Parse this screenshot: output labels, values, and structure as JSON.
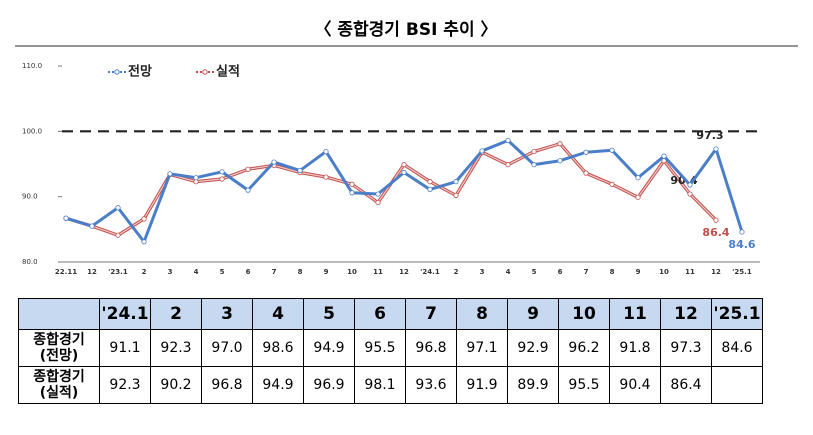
{
  "chart_data": {
    "type": "line",
    "title": "〈 종합경기 BSI 추이 〉",
    "categories": [
      "22.11",
      "12",
      "'23.1",
      "2",
      "3",
      "4",
      "5",
      "6",
      "7",
      "8",
      "9",
      "10",
      "11",
      "12",
      "'24.1",
      "2",
      "3",
      "4",
      "5",
      "6",
      "7",
      "8",
      "9",
      "10",
      "11",
      "12",
      "'25.1"
    ],
    "series": [
      {
        "name": "전망",
        "color": "#4a7ec8",
        "values": [
          86.7,
          85.5,
          88.3,
          83.1,
          93.5,
          92.9,
          93.8,
          91.0,
          95.3,
          94.0,
          96.9,
          90.6,
          90.4,
          93.7,
          91.1,
          92.3,
          97.0,
          98.6,
          94.9,
          95.5,
          96.8,
          97.1,
          92.9,
          96.2,
          91.8,
          97.3,
          84.6
        ],
        "value_labels": [
          null,
          null,
          null,
          null,
          null,
          null,
          null,
          null,
          null,
          null,
          null,
          null,
          null,
          null,
          null,
          null,
          null,
          null,
          null,
          null,
          null,
          null,
          null,
          null,
          null,
          "97.3",
          "84.6"
        ]
      },
      {
        "name": "실적",
        "color": "#c0504d",
        "values": [
          86.7,
          85.5,
          84.1,
          86.6,
          93.4,
          92.3,
          92.7,
          94.2,
          94.8,
          93.7,
          93.0,
          91.9,
          89.1,
          94.9,
          92.3,
          90.2,
          96.8,
          94.9,
          96.9,
          98.1,
          93.6,
          91.9,
          89.9,
          95.5,
          90.4,
          86.4,
          null
        ],
        "value_labels": [
          null,
          null,
          null,
          null,
          null,
          null,
          null,
          null,
          null,
          null,
          null,
          null,
          null,
          null,
          null,
          null,
          null,
          null,
          null,
          null,
          null,
          null,
          null,
          null,
          "90.4",
          "86.4",
          null
        ]
      }
    ],
    "ylim": [
      80,
      110
    ],
    "yticks": [
      {
        "value": 80,
        "label": "80.0"
      },
      {
        "value": 90,
        "label": "90.0"
      },
      {
        "value": 100,
        "label": "100.0"
      },
      {
        "value": 110,
        "label": "110.0"
      }
    ],
    "reference_line": 100,
    "grid": false,
    "legend": "top-left"
  },
  "table": {
    "columns": [
      "'24.1",
      "2",
      "3",
      "4",
      "5",
      "6",
      "7",
      "8",
      "9",
      "10",
      "11",
      "12",
      "'25.1"
    ],
    "rows": [
      {
        "label": [
          "종합경기",
          "(전망)"
        ],
        "cells": [
          "91.1",
          "92.3",
          "97.0",
          "98.6",
          "94.9",
          "95.5",
          "96.8",
          "97.1",
          "92.9",
          "96.2",
          "91.8",
          "97.3",
          "84.6"
        ]
      },
      {
        "label": [
          "종합경기",
          "(실적)"
        ],
        "cells": [
          "92.3",
          "90.2",
          "96.8",
          "94.9",
          "96.9",
          "98.1",
          "93.6",
          "91.9",
          "89.9",
          "95.5",
          "90.4",
          "86.4",
          null
        ]
      }
    ]
  }
}
